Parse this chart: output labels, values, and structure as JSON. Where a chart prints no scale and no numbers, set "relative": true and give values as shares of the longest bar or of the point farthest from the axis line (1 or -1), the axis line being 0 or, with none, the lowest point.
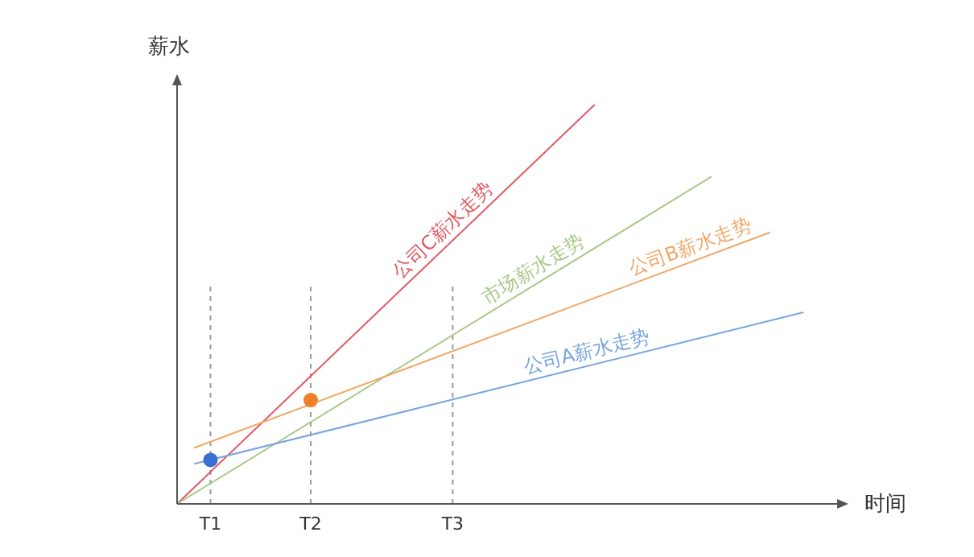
{
  "chart_data": {
    "type": "line",
    "relative": true,
    "ylabel": "薪水",
    "xlabel": "时间",
    "grid": false,
    "legend": false,
    "marker": "none",
    "categories": [
      null,
      null,
      null,
      null,
      "T1",
      null,
      null,
      null,
      null,
      null,
      null,
      null,
      null,
      null,
      null,
      null,
      "T2",
      null,
      null,
      null,
      null,
      null,
      null,
      null,
      null,
      null,
      null,
      null,
      null,
      null,
      null,
      null,
      null,
      "T3",
      null,
      null,
      null,
      null,
      null,
      null,
      null,
      null,
      null,
      null,
      null,
      null,
      null,
      null,
      null,
      null,
      null,
      null,
      null,
      null,
      null,
      null,
      null,
      null,
      null,
      null,
      null,
      null,
      null,
      null,
      null,
      null,
      null,
      null,
      null,
      null,
      null,
      null,
      null,
      null,
      null,
      null,
      null,
      null,
      null,
      null,
      null
    ],
    "series": [
      {
        "name": "公司C薪水走势",
        "color": "#e05a63",
        "values": [
          0,
          null,
          null,
          null,
          null,
          null,
          null,
          null,
          null,
          null,
          null,
          null,
          null,
          null,
          null,
          null,
          null,
          null,
          null,
          null,
          null,
          null,
          null,
          null,
          null,
          null,
          null,
          null,
          null,
          null,
          null,
          null,
          null,
          null,
          null,
          null,
          null,
          null,
          null,
          null,
          null,
          null,
          null,
          null,
          null,
          null,
          null,
          null,
          null,
          null,
          1,
          null,
          null,
          null,
          null,
          null,
          null,
          null,
          null,
          null,
          null,
          null,
          null,
          null,
          null,
          null,
          null,
          null,
          null,
          null,
          null,
          null,
          null,
          null,
          null,
          null,
          null,
          null,
          null,
          null,
          null
        ]
      },
      {
        "name": "市场薪水走势",
        "color": "#a9c98a",
        "values": [
          0,
          null,
          null,
          null,
          null,
          null,
          null,
          null,
          null,
          null,
          null,
          null,
          null,
          null,
          null,
          null,
          null,
          null,
          null,
          null,
          null,
          null,
          null,
          null,
          null,
          null,
          null,
          null,
          null,
          null,
          null,
          null,
          null,
          null,
          null,
          null,
          null,
          null,
          null,
          null,
          null,
          null,
          null,
          null,
          null,
          null,
          null,
          null,
          null,
          null,
          null,
          null,
          null,
          null,
          null,
          null,
          null,
          null,
          null,
          null,
          null,
          null,
          null,
          null,
          0.82,
          null,
          null,
          null,
          null,
          null,
          null,
          null,
          null,
          null,
          null,
          null,
          null,
          null,
          null,
          null,
          null
        ]
      },
      {
        "name": "公司B薪水走势",
        "color": "#f0a868",
        "values": [
          null,
          null,
          0.14,
          null,
          null,
          null,
          null,
          null,
          null,
          null,
          null,
          null,
          null,
          null,
          null,
          null,
          null,
          null,
          null,
          null,
          null,
          null,
          null,
          null,
          null,
          null,
          null,
          null,
          null,
          null,
          null,
          null,
          null,
          null,
          null,
          null,
          null,
          null,
          null,
          null,
          null,
          null,
          null,
          null,
          null,
          null,
          null,
          null,
          null,
          null,
          null,
          null,
          null,
          null,
          null,
          null,
          null,
          null,
          null,
          null,
          null,
          null,
          null,
          null,
          null,
          null,
          null,
          null,
          null,
          null,
          null,
          0.68,
          null,
          null,
          null,
          null,
          null,
          null,
          null,
          null,
          null
        ]
      },
      {
        "name": "公司A薪水走势",
        "color": "#7aa6dc",
        "values": [
          null,
          null,
          0.1,
          null,
          null,
          null,
          null,
          null,
          null,
          null,
          null,
          null,
          null,
          null,
          null,
          null,
          null,
          null,
          null,
          null,
          null,
          null,
          null,
          null,
          null,
          null,
          null,
          null,
          null,
          null,
          null,
          null,
          null,
          null,
          null,
          null,
          null,
          null,
          null,
          null,
          null,
          null,
          null,
          null,
          null,
          null,
          null,
          null,
          null,
          null,
          null,
          null,
          null,
          null,
          null,
          null,
          null,
          null,
          null,
          null,
          null,
          null,
          null,
          null,
          null,
          null,
          null,
          null,
          null,
          null,
          null,
          null,
          null,
          null,
          null,
          0.48,
          null,
          null,
          null,
          null,
          null
        ]
      },
      {
        "type": "scatter",
        "marker": "circle",
        "color": "#3a6fd0",
        "values": [
          null,
          null,
          null,
          null,
          0.11,
          null,
          null,
          null,
          null,
          null,
          null,
          null,
          null,
          null,
          null,
          null,
          null,
          null,
          null,
          null,
          null,
          null,
          null,
          null,
          null,
          null,
          null,
          null,
          null,
          null,
          null,
          null,
          null,
          null,
          null,
          null,
          null,
          null,
          null,
          null,
          null,
          null,
          null,
          null,
          null,
          null,
          null,
          null,
          null,
          null,
          null,
          null,
          null,
          null,
          null,
          null,
          null,
          null,
          null,
          null,
          null,
          null,
          null,
          null,
          null,
          null,
          null,
          null,
          null,
          null,
          null,
          null,
          null,
          null,
          null,
          null,
          null,
          null,
          null,
          null,
          null
        ]
      },
      {
        "type": "scatter",
        "marker": "circle",
        "color": "#f07f2a",
        "values": [
          null,
          null,
          null,
          null,
          null,
          null,
          null,
          null,
          null,
          null,
          null,
          null,
          null,
          null,
          null,
          null,
          0.26,
          null,
          null,
          null,
          null,
          null,
          null,
          null,
          null,
          null,
          null,
          null,
          null,
          null,
          null,
          null,
          null,
          null,
          null,
          null,
          null,
          null,
          null,
          null,
          null,
          null,
          null,
          null,
          null,
          null,
          null,
          null,
          null,
          null,
          null,
          null,
          null,
          null,
          null,
          null,
          null,
          null,
          null,
          null,
          null,
          null,
          null,
          null,
          null,
          null,
          null,
          null,
          null,
          null,
          null,
          null,
          null,
          null,
          null,
          null,
          null,
          null,
          null,
          null,
          null
        ]
      }
    ],
    "ref_lines": [
      {
        "axis": "x",
        "value": "T1",
        "color": "#999999",
        "line_style": "dotted"
      },
      {
        "axis": "x",
        "value": "T2",
        "color": "#999999",
        "line_style": "dotted"
      },
      {
        "axis": "x",
        "value": "T3",
        "color": "#999999",
        "line_style": "dotted"
      }
    ]
  }
}
